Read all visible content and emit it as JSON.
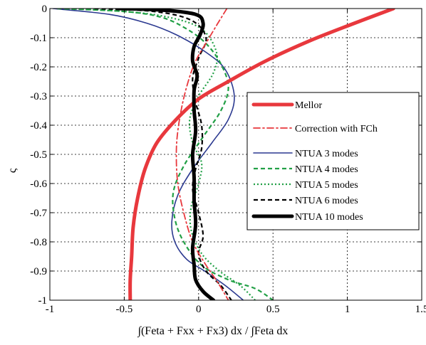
{
  "chart_data": {
    "type": "line",
    "title": "",
    "xlabel": "∫(Feta + Fxx + Fx3) dx / ∫Feta dx",
    "ylabel": "ς",
    "xlim": [
      -1,
      1.5
    ],
    "ylim": [
      -1,
      0
    ],
    "xticks": [
      -1,
      -0.5,
      0,
      0.5,
      1,
      1.5
    ],
    "xtick_labels": [
      "-1",
      "-0.5",
      "0",
      "0.5",
      "1",
      "1.5"
    ],
    "yticks": [
      0,
      -0.1,
      -0.2,
      -0.3,
      -0.4,
      -0.5,
      -0.6,
      -0.7,
      -0.8,
      -0.9,
      -1
    ],
    "ytick_labels": [
      "0",
      "-0.1",
      "-0.2",
      "-0.3",
      "-0.4",
      "-0.5",
      "-0.6",
      "-0.7",
      "-0.8",
      "-0.9",
      "-1"
    ],
    "grid": true,
    "legend_position": "right",
    "series": [
      {
        "name": "Mellor",
        "color": "#e8383d",
        "style": "solid-thick",
        "points": [
          [
            1.31,
            0
          ],
          [
            1.05,
            -0.05
          ],
          [
            0.75,
            -0.11
          ],
          [
            0.45,
            -0.18
          ],
          [
            0.2,
            -0.25
          ],
          [
            0.0,
            -0.31
          ],
          [
            -0.15,
            -0.38
          ],
          [
            -0.28,
            -0.46
          ],
          [
            -0.36,
            -0.55
          ],
          [
            -0.41,
            -0.65
          ],
          [
            -0.44,
            -0.75
          ],
          [
            -0.45,
            -0.85
          ],
          [
            -0.46,
            -0.93
          ],
          [
            -0.46,
            -1.0
          ]
        ]
      },
      {
        "name": "Correction with FCh",
        "color": "#e8383d",
        "style": "dashdot",
        "points": [
          [
            0.19,
            0
          ],
          [
            0.13,
            -0.05
          ],
          [
            0.06,
            -0.11
          ],
          [
            -0.02,
            -0.18
          ],
          [
            -0.07,
            -0.25
          ],
          [
            -0.11,
            -0.33
          ],
          [
            -0.14,
            -0.42
          ],
          [
            -0.15,
            -0.5
          ],
          [
            -0.14,
            -0.6
          ],
          [
            -0.1,
            -0.7
          ],
          [
            -0.04,
            -0.8
          ],
          [
            0.05,
            -0.88
          ],
          [
            0.13,
            -0.94
          ],
          [
            0.2,
            -1.0
          ]
        ]
      },
      {
        "name": "NTUA 3 modes",
        "color": "#2b3990",
        "style": "solid",
        "points": [
          [
            -0.98,
            0
          ],
          [
            -0.6,
            -0.02
          ],
          [
            -0.35,
            -0.05
          ],
          [
            -0.15,
            -0.09
          ],
          [
            0.05,
            -0.15
          ],
          [
            0.18,
            -0.21
          ],
          [
            0.24,
            -0.3
          ],
          [
            0.2,
            -0.38
          ],
          [
            0.09,
            -0.46
          ],
          [
            -0.04,
            -0.55
          ],
          [
            -0.14,
            -0.64
          ],
          [
            -0.18,
            -0.73
          ],
          [
            -0.16,
            -0.8
          ],
          [
            -0.08,
            -0.86
          ],
          [
            0.04,
            -0.9
          ],
          [
            0.18,
            -0.95
          ],
          [
            0.3,
            -1.0
          ]
        ]
      },
      {
        "name": "NTUA 4 modes",
        "color": "#22a046",
        "style": "dashed",
        "points": [
          [
            -0.95,
            0
          ],
          [
            -0.5,
            -0.01
          ],
          [
            -0.25,
            -0.03
          ],
          [
            -0.08,
            -0.07
          ],
          [
            0.05,
            -0.12
          ],
          [
            0.15,
            -0.19
          ],
          [
            0.2,
            -0.27
          ],
          [
            0.15,
            -0.35
          ],
          [
            0.03,
            -0.44
          ],
          [
            -0.1,
            -0.54
          ],
          [
            -0.17,
            -0.63
          ],
          [
            -0.16,
            -0.72
          ],
          [
            -0.1,
            -0.8
          ],
          [
            0.02,
            -0.88
          ],
          [
            0.2,
            -0.93
          ],
          [
            0.38,
            -0.96
          ],
          [
            0.5,
            -1.0
          ]
        ]
      },
      {
        "name": "NTUA 5 modes",
        "color": "#22a046",
        "style": "dotted",
        "points": [
          [
            -0.9,
            0
          ],
          [
            -0.5,
            -0.01
          ],
          [
            -0.2,
            -0.03
          ],
          [
            0.02,
            -0.07
          ],
          [
            0.12,
            -0.15
          ],
          [
            0.1,
            -0.22
          ],
          [
            0.0,
            -0.3
          ],
          [
            -0.06,
            -0.38
          ],
          [
            -0.04,
            -0.46
          ],
          [
            0.02,
            -0.53
          ],
          [
            0.0,
            -0.6
          ],
          [
            -0.05,
            -0.68
          ],
          [
            -0.05,
            -0.76
          ],
          [
            0.02,
            -0.84
          ],
          [
            0.14,
            -0.9
          ],
          [
            0.28,
            -0.95
          ],
          [
            0.38,
            -1.0
          ]
        ]
      },
      {
        "name": "NTUA 6 modes",
        "color": "#000000",
        "style": "dashed",
        "points": [
          [
            -0.7,
            0
          ],
          [
            -0.3,
            -0.01
          ],
          [
            -0.05,
            -0.04
          ],
          [
            0.05,
            -0.1
          ],
          [
            0.0,
            -0.17
          ],
          [
            -0.04,
            -0.24
          ],
          [
            -0.02,
            -0.32
          ],
          [
            0.02,
            -0.4
          ],
          [
            0.02,
            -0.48
          ],
          [
            -0.02,
            -0.55
          ],
          [
            -0.04,
            -0.62
          ],
          [
            0.0,
            -0.7
          ],
          [
            0.03,
            -0.78
          ],
          [
            0.0,
            -0.84
          ],
          [
            0.05,
            -0.9
          ],
          [
            0.15,
            -0.95
          ],
          [
            0.22,
            -1.0
          ]
        ]
      },
      {
        "name": "NTUA 10 modes",
        "color": "#000000",
        "style": "solid-thick",
        "points": [
          [
            -0.55,
            0
          ],
          [
            -0.25,
            -0.005
          ],
          [
            -0.02,
            -0.02
          ],
          [
            0.03,
            -0.05
          ],
          [
            0.01,
            -0.09
          ],
          [
            -0.03,
            -0.13
          ],
          [
            -0.04,
            -0.18
          ],
          [
            -0.01,
            -0.23
          ],
          [
            -0.03,
            -0.28
          ],
          [
            -0.03,
            -0.35
          ],
          [
            -0.02,
            -0.42
          ],
          [
            -0.04,
            -0.5
          ],
          [
            -0.03,
            -0.58
          ],
          [
            -0.03,
            -0.66
          ],
          [
            -0.02,
            -0.74
          ],
          [
            -0.04,
            -0.82
          ],
          [
            -0.03,
            -0.88
          ],
          [
            -0.02,
            -0.93
          ],
          [
            0.03,
            -0.97
          ],
          [
            0.1,
            -1.0
          ]
        ]
      }
    ]
  }
}
